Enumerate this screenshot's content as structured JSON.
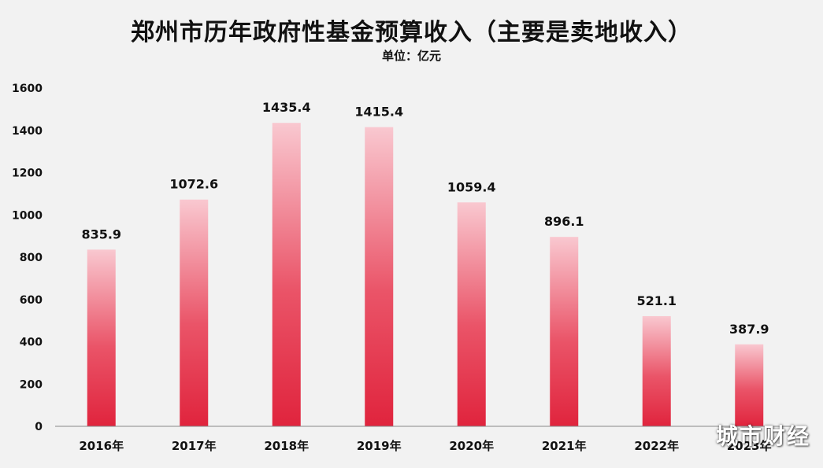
{
  "chart_data": {
    "type": "bar",
    "title": "郑州市历年政府性基金预算收入（主要是卖地收入）",
    "subtitle": "单位：亿元",
    "categories": [
      "2016年",
      "2017年",
      "2018年",
      "2019年",
      "2020年",
      "2021年",
      "2022年",
      "2023年"
    ],
    "values": [
      835.9,
      1072.6,
      1435.4,
      1415.4,
      1059.4,
      896.1,
      521.1,
      387.9
    ],
    "data_labels": [
      "835.9",
      "1072.6",
      "1435.4",
      "1415.4",
      "1059.4",
      "896.1",
      "521.1",
      "387.9"
    ],
    "yticks": [
      "0",
      "200",
      "400",
      "600",
      "800",
      "1000",
      "1200",
      "1400",
      "1600"
    ],
    "ylim": [
      0,
      1600
    ],
    "xlabel": "",
    "ylabel": "",
    "grid": false,
    "legend": "none",
    "colors": {
      "bar_top": "#f9c8d0",
      "bar_bottom": "#e0243d",
      "axis": "#888888"
    }
  },
  "watermark": "城市财经"
}
